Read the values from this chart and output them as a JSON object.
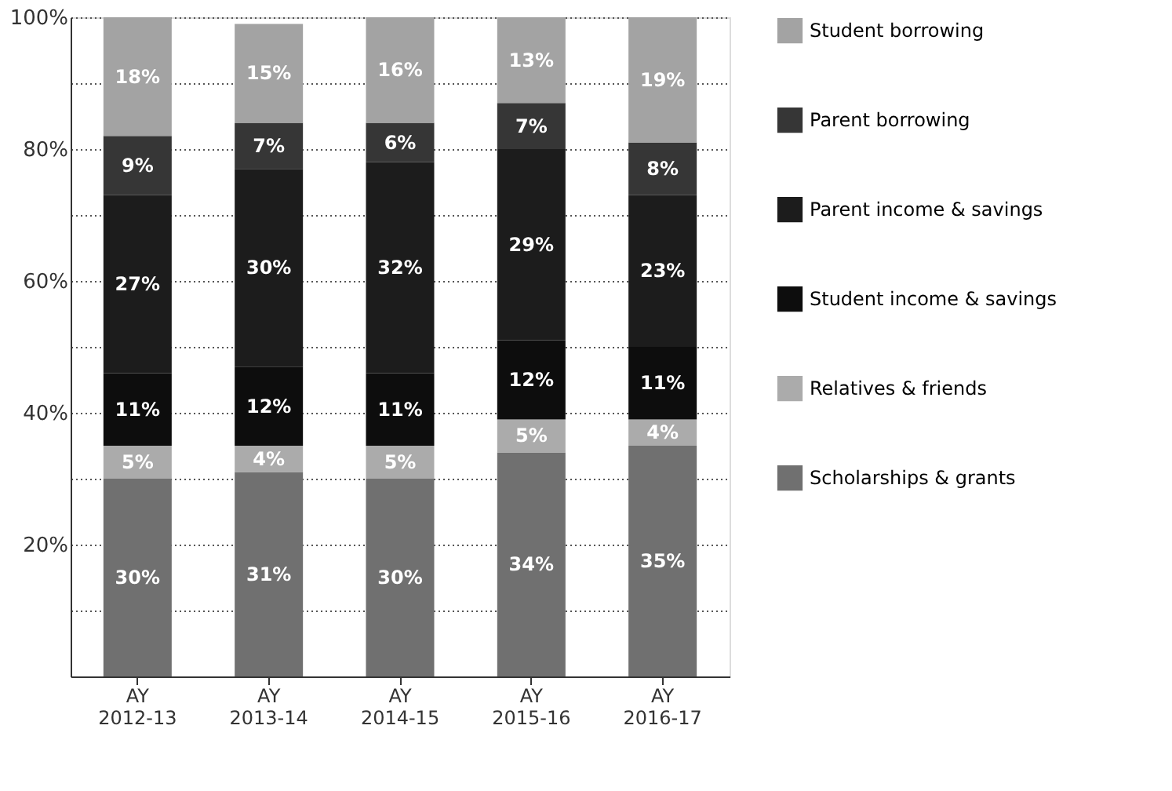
{
  "chart_data": {
    "type": "bar",
    "stacked": true,
    "categories": [
      "AY 2012-13",
      "AY 2013-14",
      "AY 2014-15",
      "AY 2015-16",
      "AY 2016-17"
    ],
    "series": [
      {
        "name": "Scholarships & grants",
        "color": "#707070",
        "values": [
          30,
          31,
          30,
          34,
          35
        ],
        "value_labels": [
          "30%",
          "31%",
          "30%",
          "34%",
          "35%"
        ]
      },
      {
        "name": "Relatives & friends",
        "color": "#ababab",
        "values": [
          5,
          4,
          5,
          5,
          4
        ],
        "value_labels": [
          "5%",
          "4%",
          "5%",
          "5%",
          "4%"
        ]
      },
      {
        "name": "Student income & savings",
        "color": "#0d0d0d",
        "values": [
          11,
          12,
          11,
          12,
          11
        ],
        "value_labels": [
          "11%",
          "12%",
          "11%",
          "12%",
          "11%"
        ]
      },
      {
        "name": "Parent income & savings",
        "color": "#1c1c1c",
        "values": [
          27,
          30,
          32,
          29,
          23
        ],
        "value_labels": [
          "27%",
          "30%",
          "32%",
          "29%",
          "23%"
        ]
      },
      {
        "name": "Parent borrowing",
        "color": "#363636",
        "values": [
          9,
          7,
          6,
          7,
          8
        ],
        "value_labels": [
          "9%",
          "7%",
          "6%",
          "7%",
          "8%"
        ]
      },
      {
        "name": "Student borrowing",
        "color": "#a3a3a3",
        "values": [
          18,
          15,
          16,
          13,
          19
        ],
        "value_labels": [
          "18%",
          "15%",
          "16%",
          "13%",
          "19%"
        ]
      }
    ],
    "ylim": [
      0,
      100
    ],
    "yticks": [
      {
        "value": 0,
        "label": null
      },
      {
        "value": 10,
        "label": null
      },
      {
        "value": 20,
        "label": "20%"
      },
      {
        "value": 30,
        "label": null
      },
      {
        "value": 40,
        "label": "40%"
      },
      {
        "value": 50,
        "label": null
      },
      {
        "value": 60,
        "label": "60%"
      },
      {
        "value": 70,
        "label": null
      },
      {
        "value": 80,
        "label": "80%"
      },
      {
        "value": 90,
        "label": null
      },
      {
        "value": 100,
        "label": "100%"
      }
    ],
    "grid": "y",
    "legend": "right"
  }
}
